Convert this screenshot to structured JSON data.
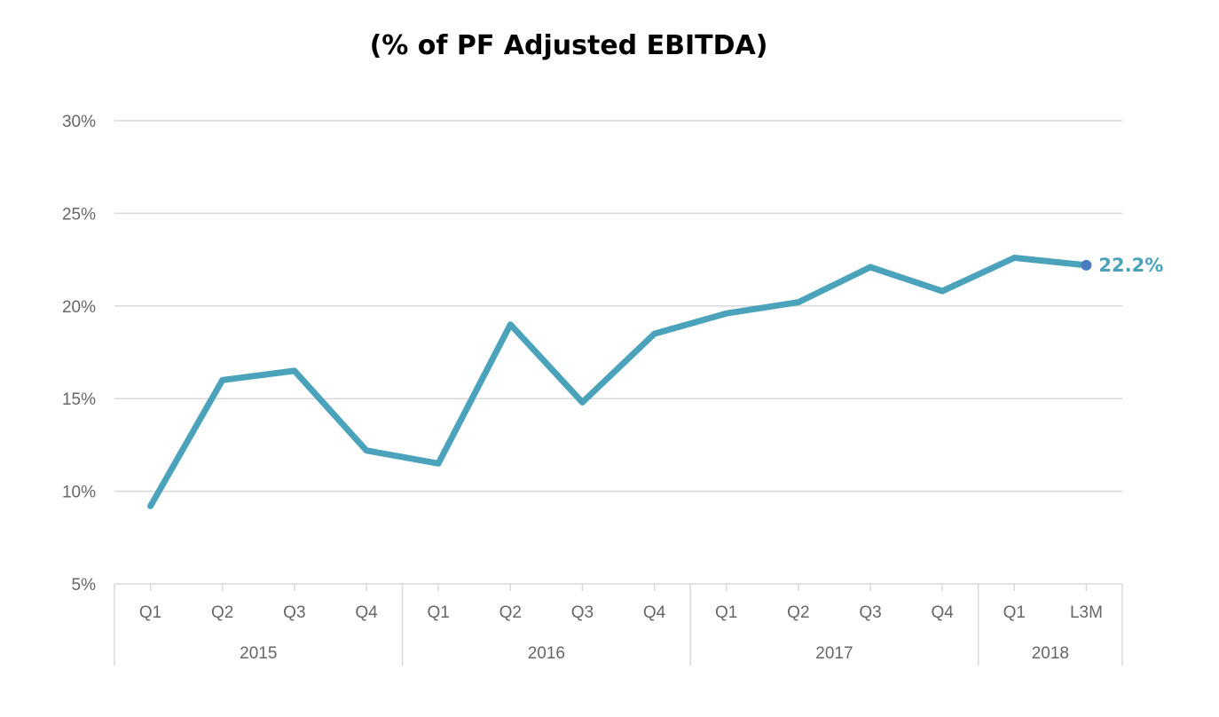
{
  "chart_data": {
    "type": "line",
    "title": "(% of PF Adjusted EBITDA)",
    "xlabel": "",
    "ylabel": "",
    "ylim": [
      5,
      30
    ],
    "y_ticks": [
      5,
      10,
      15,
      20,
      25,
      30
    ],
    "y_tick_labels": [
      "5%",
      "10%",
      "15%",
      "20%",
      "25%",
      "30%"
    ],
    "grid": true,
    "legend": "none",
    "categories": [
      "Q1",
      "Q2",
      "Q3",
      "Q4",
      "Q1",
      "Q2",
      "Q3",
      "Q4",
      "Q1",
      "Q2",
      "Q3",
      "Q4",
      "Q1",
      "L3M"
    ],
    "groups": [
      {
        "label": "2015",
        "count": 4
      },
      {
        "label": "2016",
        "count": 4
      },
      {
        "label": "2017",
        "count": 4
      },
      {
        "label": "2018",
        "count": 2
      }
    ],
    "series": [
      {
        "values": [
          9.2,
          16.0,
          16.5,
          12.2,
          11.5,
          19.0,
          14.8,
          18.5,
          19.6,
          20.2,
          22.1,
          20.8,
          22.6,
          22.2
        ],
        "color": "#4aa3ba"
      }
    ],
    "last_point_label": "22.2%",
    "colors": {
      "line": "#4aa3ba",
      "marker": "#4a7bc0",
      "data_label": "#4aa3ba",
      "grid": "#d9d9d9",
      "axis": "#d9d9d9",
      "tick_text": "#666666"
    }
  }
}
